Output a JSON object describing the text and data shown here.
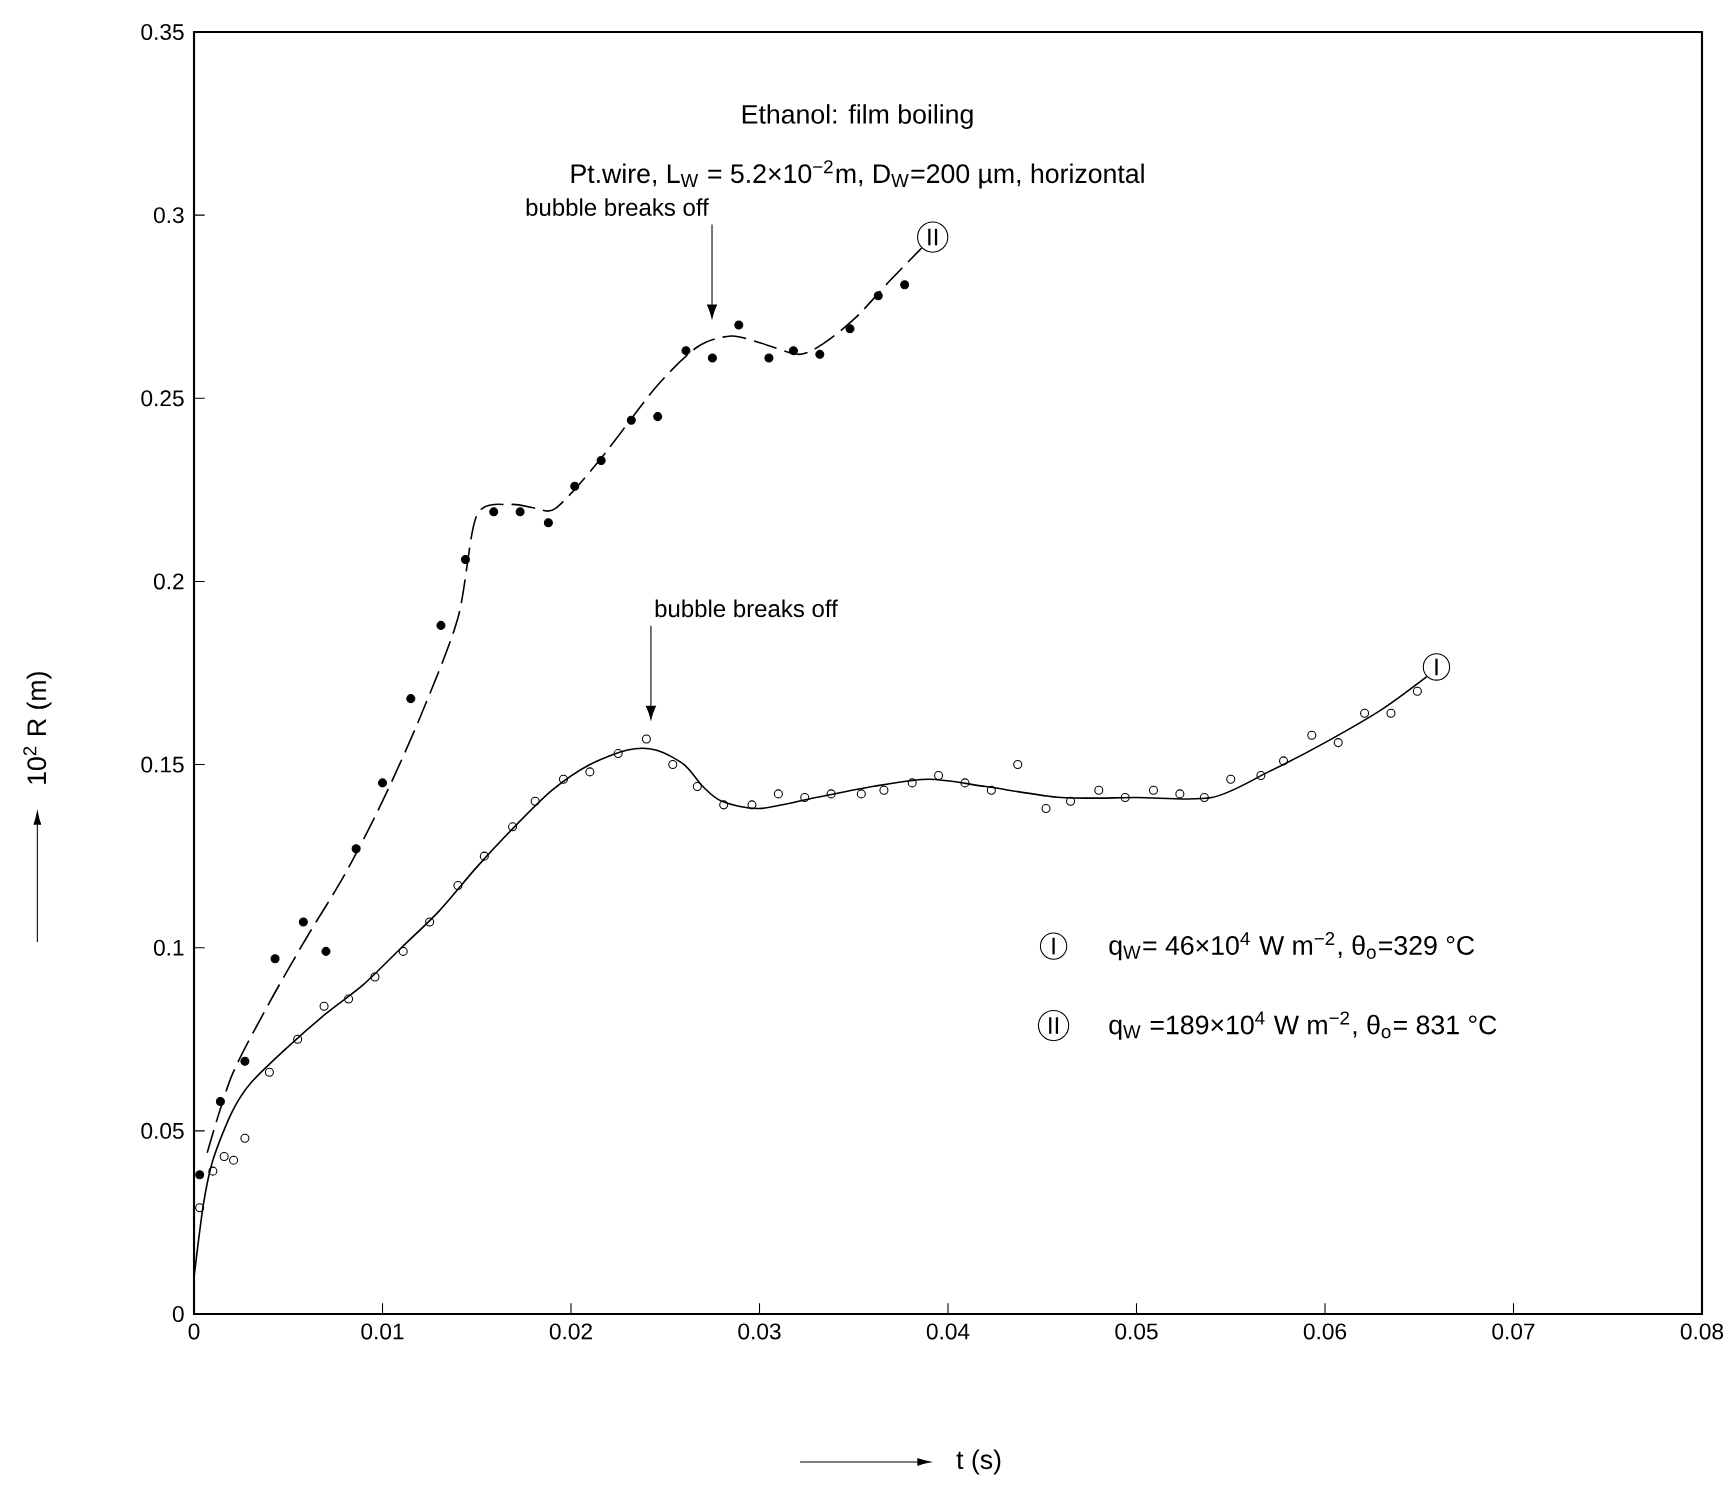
{
  "chart_data": {
    "type": "scatter",
    "title": "Ethanol: film boiling",
    "subtitle": "Pt.wire, L$_{W}$ = 5.2×10$^{−2}$m, D$_{W}$=200 µm, horizontal",
    "xlabel": "t (s)",
    "ylabel": "10$^{2}$ R (m)",
    "xlim": [
      0,
      0.08
    ],
    "ylim": [
      0,
      0.35
    ],
    "xticks": [
      0,
      0.01,
      0.02,
      0.03,
      0.04,
      0.05,
      0.06,
      0.07,
      0.08
    ],
    "yticks": [
      0,
      0.05,
      0.1,
      0.15,
      0.2,
      0.25,
      0.3,
      0.35
    ],
    "grid": false,
    "series": [
      {
        "marker": "open circle",
        "color": "#000000",
        "x": [
          0.0003,
          0.001,
          0.0016,
          0.0021,
          0.0027,
          0.004,
          0.0055,
          0.0069,
          0.0082,
          0.0096,
          0.0111,
          0.0125,
          0.014,
          0.0154,
          0.0169,
          0.0181,
          0.0196,
          0.021,
          0.0225,
          0.024,
          0.0254,
          0.0267,
          0.0281,
          0.0296,
          0.031,
          0.0324,
          0.0338,
          0.0354,
          0.0366,
          0.0381,
          0.0395,
          0.0409,
          0.0423,
          0.0437,
          0.0452,
          0.0465,
          0.048,
          0.0494,
          0.0509,
          0.0523,
          0.0536,
          0.055,
          0.0566,
          0.0578,
          0.0593,
          0.0607,
          0.0621,
          0.0635,
          0.0649
        ],
        "values": [
          0.029,
          0.039,
          0.043,
          0.042,
          0.048,
          0.066,
          0.075,
          0.084,
          0.086,
          0.092,
          0.099,
          0.107,
          0.117,
          0.125,
          0.133,
          0.14,
          0.146,
          0.148,
          0.153,
          0.157,
          0.15,
          0.144,
          0.139,
          0.139,
          0.142,
          0.141,
          0.142,
          0.142,
          0.143,
          0.145,
          0.147,
          0.145,
          0.143,
          0.15,
          0.138,
          0.14,
          0.143,
          0.141,
          0.143,
          0.142,
          0.141,
          0.146,
          0.147,
          0.151,
          0.158,
          0.156,
          0.164,
          0.164,
          0.17
        ]
      },
      {
        "marker": "circle",
        "color": "#000000",
        "x": [
          0.0003,
          0.0014,
          0.0027,
          0.0043,
          0.0058,
          0.007,
          0.0086,
          0.01,
          0.0115,
          0.0131,
          0.0144,
          0.0159,
          0.0173,
          0.0188,
          0.0202,
          0.0216,
          0.0232,
          0.0246,
          0.0261,
          0.0275,
          0.0289,
          0.0305,
          0.0318,
          0.0332,
          0.0348,
          0.0363,
          0.0377
        ],
        "values": [
          0.038,
          0.058,
          0.069,
          0.097,
          0.107,
          0.099,
          0.127,
          0.145,
          0.168,
          0.188,
          0.206,
          0.219,
          0.219,
          0.216,
          0.226,
          0.233,
          0.244,
          0.245,
          0.263,
          0.261,
          0.27,
          0.261,
          0.263,
          0.262,
          0.269,
          0.278,
          0.281
        ]
      },
      {
        "type": "line",
        "name": "I",
        "line_style": "solid",
        "color": "#000000",
        "x": [
          0,
          0.0005,
          0.001,
          0.002,
          0.003,
          0.005,
          0.007,
          0.009,
          0.011,
          0.013,
          0.015,
          0.017,
          0.019,
          0.021,
          0.023,
          0.0245,
          0.026,
          0.027,
          0.028,
          0.03,
          0.033,
          0.036,
          0.039,
          0.042,
          0.046,
          0.05,
          0.054,
          0.057,
          0.06,
          0.063,
          0.0654
        ],
        "values": [
          0.01,
          0.03,
          0.042,
          0.055,
          0.063,
          0.073,
          0.082,
          0.09,
          0.1,
          0.11,
          0.122,
          0.133,
          0.143,
          0.15,
          0.154,
          0.154,
          0.15,
          0.144,
          0.14,
          0.138,
          0.141,
          0.144,
          0.146,
          0.144,
          0.141,
          0.141,
          0.141,
          0.148,
          0.156,
          0.165,
          0.174
        ]
      },
      {
        "type": "line",
        "name": "II",
        "line_style": "dashed",
        "color": "#000000",
        "x": [
          0.0007,
          0.002,
          0.004,
          0.006,
          0.008,
          0.01,
          0.012,
          0.014,
          0.015,
          0.0168,
          0.0181,
          0.0192,
          0.0215,
          0.0245,
          0.0267,
          0.0285,
          0.0301,
          0.0321,
          0.0334,
          0.0351,
          0.0369,
          0.0386
        ],
        "values": [
          0.044,
          0.065,
          0.085,
          0.103,
          0.12,
          0.14,
          0.163,
          0.19,
          0.218,
          0.221,
          0.22,
          0.22,
          0.233,
          0.253,
          0.264,
          0.267,
          0.265,
          0.262,
          0.265,
          0.272,
          0.282,
          0.291
        ]
      }
    ],
    "annotations": [
      "bubble breaks off",
      "bubble breaks off",
      "q$_{W}$= 46×10$^{4}$ W m$^{−2}$, θ$_{o}$=329 °C",
      "q$_{W}$ =189×10$^{4}$ W m$^{−2}$, θ$_{o}$= 831 °C"
    ]
  }
}
